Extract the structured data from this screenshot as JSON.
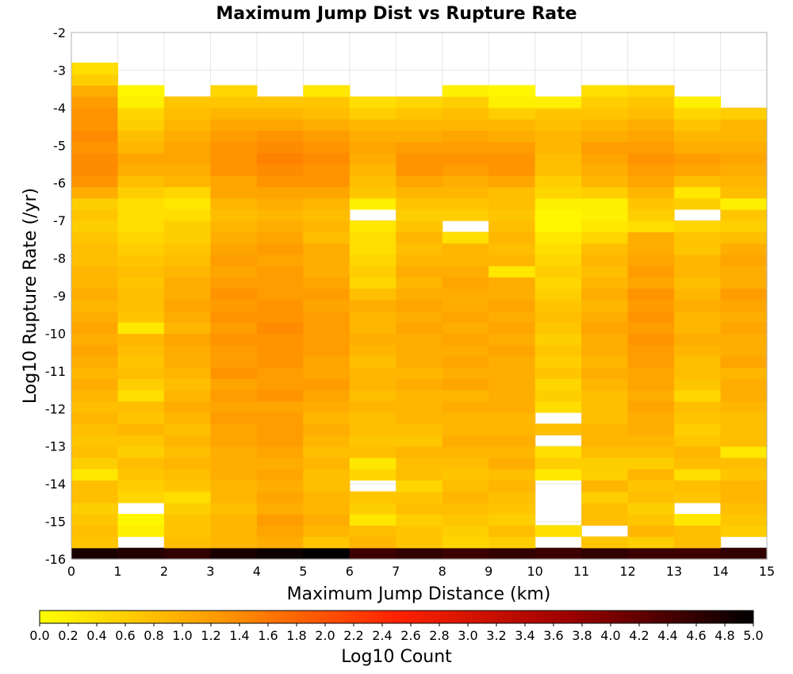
{
  "chart_data": {
    "type": "heatmap",
    "title": "Maximum Jump Dist vs Rupture Rate",
    "xlabel": "Maximum Jump Distance (km)",
    "ylabel": "Log10 Rupture Rate (/yr)",
    "colorbar_label": "Log10 Count",
    "xlim": [
      0,
      15
    ],
    "ylim": [
      -16,
      -2
    ],
    "x_ticks": [
      "0",
      "1",
      "2",
      "3",
      "4",
      "5",
      "6",
      "7",
      "8",
      "9",
      "10",
      "11",
      "12",
      "13",
      "14",
      "15"
    ],
    "y_ticks": [
      "-2",
      "-3",
      "-4",
      "-5",
      "-6",
      "-7",
      "-8",
      "-9",
      "-10",
      "-11",
      "-12",
      "-13",
      "-14",
      "-15",
      "-16"
    ],
    "colorbar_range": [
      0.0,
      5.0
    ],
    "colorbar_ticks": [
      "0.0",
      "0.2",
      "0.4",
      "0.6",
      "0.8",
      "1.0",
      "1.2",
      "1.4",
      "1.6",
      "1.8",
      "2.0",
      "2.2",
      "2.4",
      "2.6",
      "2.8",
      "3.0",
      "3.2",
      "3.4",
      "3.6",
      "3.8",
      "4.0",
      "4.2",
      "4.4",
      "4.6",
      "4.8",
      "5.0"
    ],
    "colormap": [
      "#ffff00",
      "#ff9900",
      "#ff2200",
      "#990000",
      "#000000"
    ],
    "x_bin_width_km": 1,
    "y_bin_height_log10": 0.3,
    "y_bin_start": -16.0,
    "note_values": "z values are Log10 Count per bin; null = empty bin. Rows listed from bottom (rate -16.0) upward in steps of 0.3.",
    "z_rows": [
      [
        4.8,
        4.7,
        4.6,
        4.8,
        4.9,
        5.0,
        4.5,
        4.6,
        4.5,
        4.6,
        4.5,
        4.6,
        4.5,
        4.5,
        4.6
      ],
      [
        0.7,
        null,
        0.8,
        0.9,
        1.0,
        0.7,
        0.9,
        0.7,
        0.5,
        0.6,
        null,
        0.7,
        0.6,
        0.8,
        null
      ],
      [
        0.8,
        0.2,
        0.7,
        0.9,
        1.1,
        0.9,
        0.8,
        0.7,
        0.6,
        0.8,
        0.4,
        null,
        0.9,
        0.8,
        0.6
      ],
      [
        0.7,
        0.1,
        0.7,
        0.9,
        1.2,
        1.0,
        0.3,
        0.6,
        0.7,
        0.6,
        null,
        0.8,
        0.7,
        0.3,
        0.7
      ],
      [
        0.6,
        null,
        0.6,
        0.8,
        1.0,
        0.9,
        0.6,
        0.8,
        0.8,
        0.7,
        null,
        0.8,
        0.6,
        null,
        0.8
      ],
      [
        0.8,
        0.5,
        0.4,
        0.9,
        1.1,
        0.9,
        0.7,
        0.7,
        0.9,
        0.8,
        null,
        0.6,
        0.8,
        0.7,
        0.9
      ],
      [
        0.8,
        0.6,
        0.7,
        0.9,
        1.0,
        0.8,
        null,
        0.5,
        0.8,
        0.9,
        null,
        0.9,
        0.7,
        0.8,
        0.9
      ],
      [
        0.3,
        0.7,
        0.8,
        1.0,
        1.1,
        0.8,
        0.5,
        0.8,
        0.7,
        0.8,
        0.3,
        0.6,
        0.9,
        0.4,
        0.7
      ],
      [
        0.6,
        0.8,
        0.9,
        1.0,
        1.0,
        0.9,
        0.3,
        0.8,
        0.8,
        1.0,
        0.6,
        0.6,
        0.6,
        0.8,
        0.8
      ],
      [
        0.8,
        0.6,
        0.8,
        1.0,
        1.1,
        0.8,
        0.8,
        0.9,
        0.9,
        0.9,
        0.4,
        0.8,
        0.8,
        0.9,
        0.3
      ],
      [
        0.7,
        0.7,
        0.9,
        1.1,
        1.2,
        0.9,
        0.7,
        0.7,
        1.0,
        1.0,
        null,
        0.9,
        0.9,
        0.7,
        0.8
      ],
      [
        0.8,
        0.9,
        0.8,
        1.1,
        1.2,
        1.0,
        0.8,
        0.8,
        0.9,
        0.9,
        0.8,
        0.9,
        1.0,
        0.6,
        0.8
      ],
      [
        0.9,
        0.7,
        0.9,
        1.2,
        1.2,
        0.9,
        0.8,
        0.9,
        0.9,
        0.9,
        null,
        0.8,
        1.0,
        0.7,
        0.8
      ],
      [
        0.8,
        0.8,
        1.0,
        1.1,
        1.1,
        1.0,
        0.9,
        0.9,
        1.0,
        1.0,
        0.4,
        0.8,
        1.1,
        0.8,
        0.9
      ],
      [
        0.9,
        0.4,
        0.9,
        1.2,
        1.3,
        1.1,
        0.8,
        0.9,
        0.9,
        1.0,
        0.6,
        0.8,
        1.0,
        0.5,
        1.0
      ],
      [
        1.0,
        0.6,
        0.8,
        1.1,
        1.2,
        1.2,
        0.9,
        1.0,
        1.1,
        1.0,
        0.5,
        0.9,
        1.1,
        0.7,
        1.0
      ],
      [
        0.9,
        0.8,
        0.9,
        1.3,
        1.2,
        1.1,
        0.9,
        0.9,
        1.0,
        1.0,
        0.7,
        1.0,
        1.1,
        0.8,
        0.9
      ],
      [
        1.0,
        0.7,
        1.0,
        1.2,
        1.3,
        1.1,
        0.8,
        1.0,
        1.1,
        1.0,
        0.6,
        0.9,
        1.2,
        0.8,
        1.1
      ],
      [
        1.1,
        0.8,
        1.0,
        1.2,
        1.3,
        1.2,
        0.9,
        1.0,
        1.0,
        1.1,
        0.7,
        1.0,
        1.2,
        0.9,
        1.0
      ],
      [
        1.0,
        0.9,
        1.1,
        1.3,
        1.3,
        1.2,
        1.0,
        1.0,
        1.1,
        1.0,
        0.6,
        1.0,
        1.3,
        1.0,
        1.0
      ],
      [
        1.1,
        0.3,
        0.9,
        1.2,
        1.4,
        1.2,
        0.9,
        1.1,
        1.0,
        1.1,
        0.7,
        1.1,
        1.2,
        0.9,
        1.1
      ],
      [
        1.0,
        0.7,
        1.0,
        1.3,
        1.3,
        1.2,
        0.9,
        1.0,
        1.1,
        1.0,
        0.8,
        1.0,
        1.3,
        0.9,
        1.0
      ],
      [
        0.9,
        0.8,
        1.1,
        1.2,
        1.3,
        1.1,
        1.0,
        1.1,
        1.0,
        1.1,
        0.7,
        0.9,
        1.2,
        1.0,
        1.1
      ],
      [
        1.0,
        0.8,
        1.0,
        1.3,
        1.2,
        1.2,
        0.8,
        1.0,
        1.0,
        1.0,
        0.6,
        1.0,
        1.3,
        0.9,
        1.2
      ],
      [
        0.9,
        0.7,
        1.0,
        1.2,
        1.2,
        1.1,
        0.5,
        0.9,
        1.1,
        1.0,
        0.5,
        0.9,
        1.1,
        0.8,
        1.0
      ],
      [
        0.9,
        0.8,
        0.9,
        1.1,
        1.2,
        1.0,
        0.6,
        1.0,
        1.0,
        0.3,
        0.6,
        0.8,
        1.2,
        0.9,
        1.0
      ],
      [
        0.8,
        0.7,
        0.8,
        1.2,
        1.1,
        1.0,
        0.5,
        0.9,
        0.9,
        0.9,
        0.5,
        0.9,
        1.1,
        0.9,
        1.1
      ],
      [
        0.8,
        0.6,
        0.7,
        1.1,
        1.2,
        1.0,
        0.4,
        0.8,
        0.9,
        0.8,
        0.4,
        0.8,
        1.0,
        0.7,
        1.0
      ],
      [
        0.7,
        0.5,
        0.6,
        1.0,
        1.1,
        0.8,
        0.4,
        0.9,
        0.4,
        0.9,
        0.3,
        0.5,
        1.0,
        0.7,
        0.8
      ],
      [
        0.6,
        0.4,
        0.6,
        0.9,
        1.0,
        0.9,
        0.3,
        0.7,
        null,
        0.8,
        0.1,
        0.3,
        0.4,
        0.5,
        0.6
      ],
      [
        0.7,
        0.4,
        0.4,
        0.8,
        0.9,
        0.8,
        null,
        0.6,
        0.6,
        0.7,
        0.1,
        0.2,
        0.6,
        null,
        0.7
      ],
      [
        0.6,
        0.4,
        0.3,
        0.9,
        1.0,
        0.9,
        0.2,
        0.7,
        0.7,
        0.8,
        0.2,
        0.2,
        0.7,
        0.6,
        0.2
      ],
      [
        1.0,
        0.6,
        0.5,
        1.1,
        1.1,
        1.1,
        0.7,
        0.9,
        0.9,
        0.8,
        0.5,
        0.6,
        0.9,
        0.3,
        0.8
      ],
      [
        1.3,
        0.8,
        0.9,
        1.1,
        1.3,
        1.3,
        0.8,
        1.1,
        1.0,
        1.1,
        0.6,
        0.9,
        1.1,
        0.8,
        0.9
      ],
      [
        1.4,
        1.0,
        1.0,
        1.3,
        1.4,
        1.3,
        0.9,
        1.3,
        1.2,
        1.3,
        0.8,
        1.0,
        1.2,
        1.1,
        1.0
      ],
      [
        1.4,
        1.1,
        1.1,
        1.3,
        1.5,
        1.4,
        1.0,
        1.3,
        1.3,
        1.3,
        0.8,
        1.1,
        1.3,
        1.2,
        1.1
      ],
      [
        1.3,
        0.9,
        1.1,
        1.3,
        1.4,
        1.3,
        1.1,
        1.2,
        1.2,
        1.2,
        0.9,
        1.2,
        1.2,
        1.0,
        1.0
      ],
      [
        1.4,
        0.8,
        1.0,
        1.2,
        1.3,
        1.2,
        1.0,
        1.0,
        1.1,
        1.0,
        0.9,
        1.0,
        1.1,
        0.9,
        0.9
      ],
      [
        1.3,
        0.6,
        0.9,
        1.1,
        1.1,
        1.0,
        0.9,
        0.9,
        0.9,
        0.9,
        0.8,
        0.9,
        1.0,
        0.7,
        0.9
      ],
      [
        1.3,
        0.5,
        0.8,
        0.9,
        0.9,
        0.8,
        0.6,
        0.7,
        0.8,
        0.6,
        0.7,
        0.7,
        0.8,
        0.5,
        0.6
      ],
      [
        1.2,
        0.2,
        0.7,
        0.7,
        0.7,
        0.7,
        0.4,
        0.5,
        0.6,
        0.2,
        0.2,
        0.6,
        0.7,
        0.2,
        null
      ],
      [
        1.0,
        0.1,
        null,
        0.5,
        null,
        0.3,
        null,
        null,
        0.2,
        0.1,
        null,
        0.4,
        0.5,
        null,
        null
      ],
      [
        0.6,
        null,
        null,
        null,
        null,
        null,
        null,
        null,
        null,
        null,
        null,
        null,
        null,
        null,
        null
      ],
      [
        0.4,
        null,
        null,
        null,
        null,
        null,
        null,
        null,
        null,
        null,
        null,
        null,
        null,
        null,
        null
      ]
    ]
  }
}
